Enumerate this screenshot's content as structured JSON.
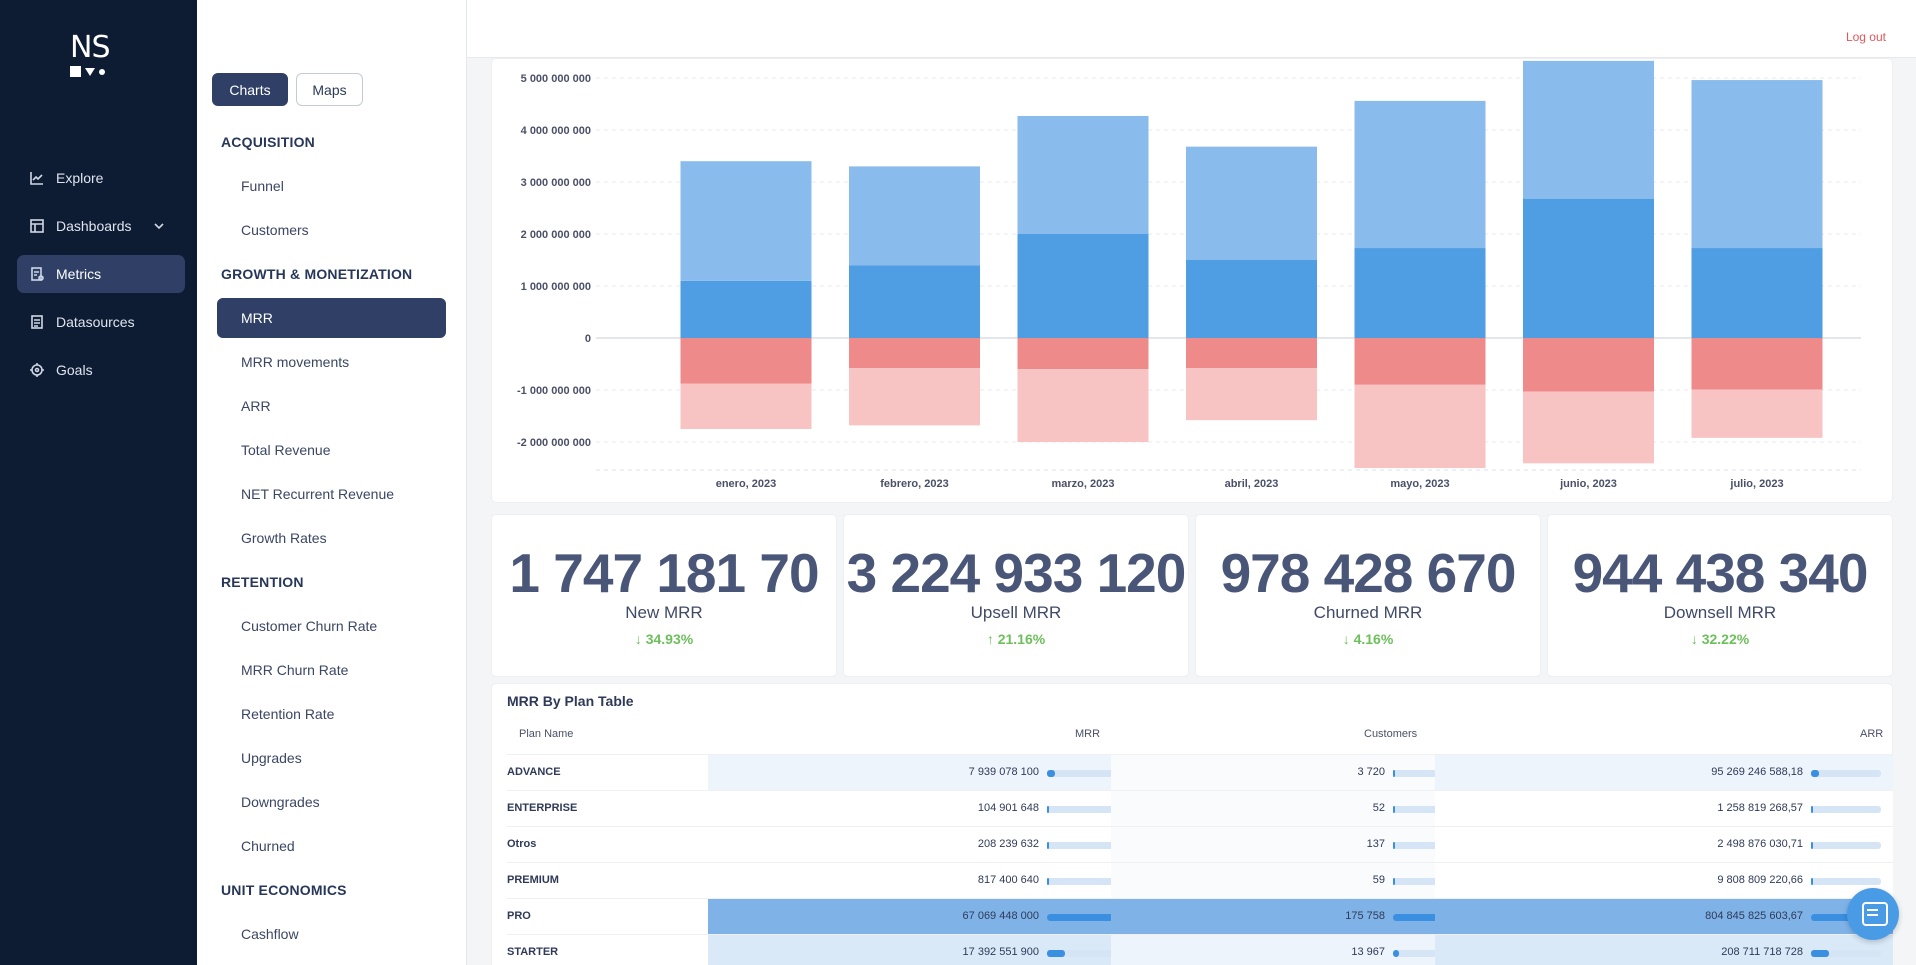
{
  "nav": {
    "items": [
      {
        "label": "Explore",
        "icon": "line-chart-icon"
      },
      {
        "label": "Dashboards",
        "icon": "dashboard-icon"
      },
      {
        "label": "Metrics",
        "icon": "metrics-icon",
        "active": true
      },
      {
        "label": "Datasources",
        "icon": "datasource-icon"
      },
      {
        "label": "Goals",
        "icon": "target-icon"
      }
    ]
  },
  "header": {
    "logout": "Log out",
    "logo": "NS"
  },
  "sidebar": {
    "tabs": {
      "charts": "Charts",
      "maps": "Maps"
    },
    "sections": [
      {
        "title": "ACQUISITION",
        "items": [
          "Funnel",
          "Customers"
        ]
      },
      {
        "title": "GROWTH & MONETIZATION",
        "items": [
          "MRR",
          "MRR movements",
          "ARR",
          "Total Revenue",
          "NET Recurrent Revenue",
          "Growth Rates"
        ]
      },
      {
        "title": "RETENTION",
        "items": [
          "Customer Churn Rate",
          "MRR Churn Rate",
          "Retention Rate",
          "Upgrades",
          "Downgrades",
          "Churned"
        ]
      },
      {
        "title": "UNIT ECONOMICS",
        "items": [
          "Cashflow"
        ]
      }
    ],
    "active_item": "MRR"
  },
  "chart_data": {
    "type": "bar",
    "stacked": true,
    "categories": [
      "enero, 2023",
      "febrero, 2023",
      "marzo, 2023",
      "abril, 2023",
      "mayo, 2023",
      "junio, 2023",
      "julio, 2023"
    ],
    "series": [
      {
        "values": [
          1100000000,
          1400000000,
          2000000000,
          1500000000,
          1730000000,
          2680000000,
          1730000000
        ],
        "color": "#4f9de2"
      },
      {
        "values": [
          2300000000,
          1900000000,
          2270000000,
          2180000000,
          2830000000,
          2650000000,
          3230000000
        ],
        "color": "#89bbec"
      },
      {
        "values": [
          -880000000,
          -580000000,
          -600000000,
          -580000000,
          -900000000,
          -1030000000,
          -990000000
        ],
        "color": "#ef8a8a"
      },
      {
        "values": [
          -870000000,
          -1100000000,
          -1400000000,
          -1000000000,
          -1600000000,
          -1380000000,
          -930000000
        ],
        "color": "#f7c3c3"
      }
    ],
    "yticks": [
      "5 000 000 000",
      "4 000 000 000",
      "3 000 000 000",
      "2 000 000 000",
      "1 000 000 000",
      "0",
      "-1 000 000 000",
      "-2 000 000 000"
    ],
    "ylim": [
      -2500000000,
      5300000000
    ]
  },
  "kpis": [
    {
      "value": "1 747 181 70",
      "label": "New MRR",
      "change": "34.93%",
      "dir": "down"
    },
    {
      "value": "3 224 933 120",
      "label": "Upsell MRR",
      "change": "21.16%",
      "dir": "up"
    },
    {
      "value": "978 428 670",
      "label": "Churned MRR",
      "change": "4.16%",
      "dir": "down"
    },
    {
      "value": "944 438 340",
      "label": "Downsell MRR",
      "change": "32.22%",
      "dir": "down"
    }
  ],
  "table": {
    "title": "MRR By Plan Table",
    "headers": [
      "Plan Name",
      "MRR",
      "Customers",
      "ARR"
    ],
    "rows": [
      {
        "name": "ADVANCE",
        "mrr": "7 939 078 100",
        "customers": "3 720",
        "arr": "95 269 246 588,18",
        "mrr_frac": 0.118,
        "cust_frac": 0.021,
        "arr_frac": 0.118
      },
      {
        "name": "ENTERPRISE",
        "mrr": "104 901 648",
        "customers": "52",
        "arr": "1 258 819 268,57",
        "mrr_frac": 0.002,
        "cust_frac": 0.0003,
        "arr_frac": 0.002
      },
      {
        "name": "Otros",
        "mrr": "208 239 632",
        "customers": "137",
        "arr": "2 498 876 030,71",
        "mrr_frac": 0.003,
        "cust_frac": 0.0008,
        "arr_frac": 0.003
      },
      {
        "name": "PREMIUM",
        "mrr": "817 400 640",
        "customers": "59",
        "arr": "9 808 809 220,66",
        "mrr_frac": 0.012,
        "cust_frac": 0.0003,
        "arr_frac": 0.012
      },
      {
        "name": "PRO",
        "mrr": "67 069 448 000",
        "customers": "175 758",
        "arr": "804 845 825 603,67",
        "mrr_frac": 1.0,
        "cust_frac": 1.0,
        "arr_frac": 1.0
      },
      {
        "name": "STARTER",
        "mrr": "17 392 551 900",
        "customers": "13 967",
        "arr": "208 711 718 728",
        "mrr_frac": 0.26,
        "cust_frac": 0.08,
        "arr_frac": 0.26
      }
    ]
  }
}
